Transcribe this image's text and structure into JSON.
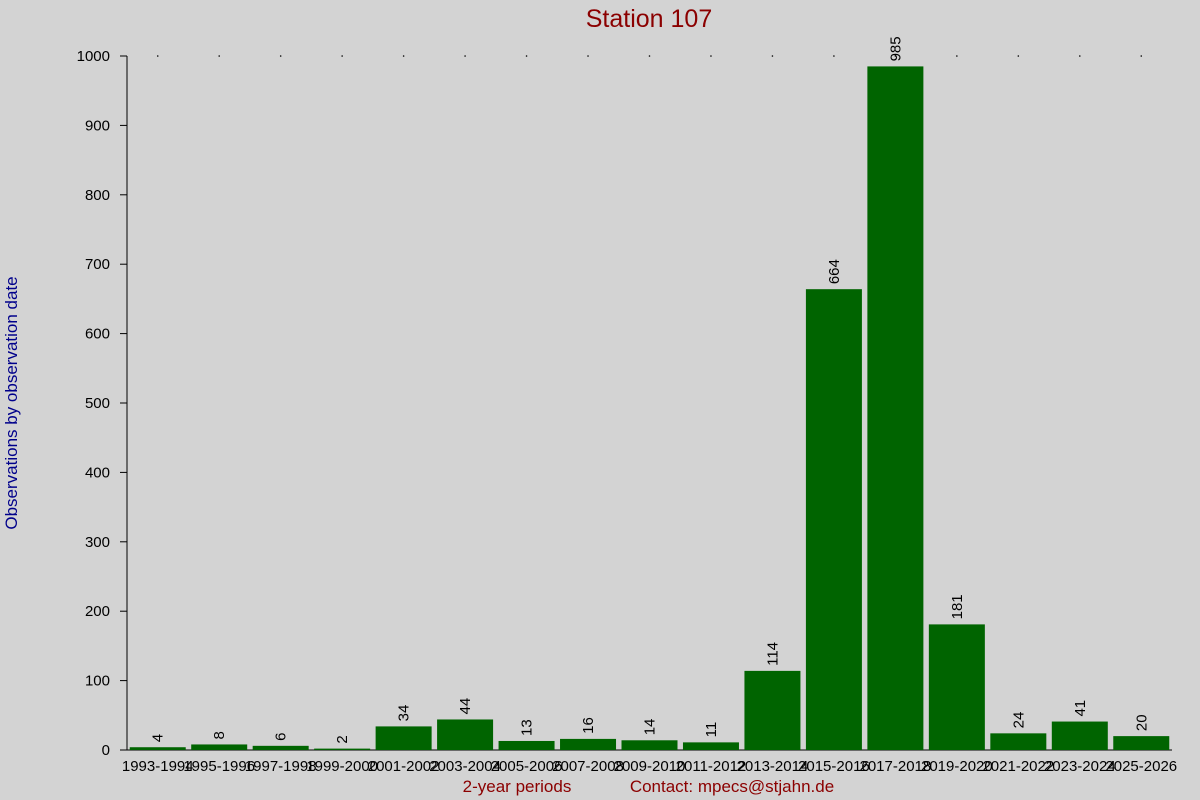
{
  "chart_data": {
    "type": "bar",
    "title": "Station 107",
    "y_label": "Observations by observation date",
    "x_label": "2-year periods",
    "contact": "Contact: mpecs@stjahn.de",
    "categories": [
      "1993-1994",
      "1995-1996",
      "1997-1998",
      "1999-2000",
      "2001-2002",
      "2003-2004",
      "2005-2006",
      "2007-2008",
      "2009-2010",
      "2011-2012",
      "2013-2014",
      "2015-2016",
      "2017-2018",
      "2019-2020",
      "2021-2022",
      "2023-2024",
      "2025-2026"
    ],
    "values": [
      4,
      8,
      6,
      2,
      34,
      44,
      13,
      16,
      14,
      11,
      114,
      664,
      985,
      181,
      24,
      41,
      20
    ],
    "color": "#006400",
    "ylim": [
      0,
      1000
    ],
    "yticks": [
      0,
      100,
      200,
      300,
      400,
      500,
      600,
      700,
      800,
      900,
      1000
    ]
  }
}
